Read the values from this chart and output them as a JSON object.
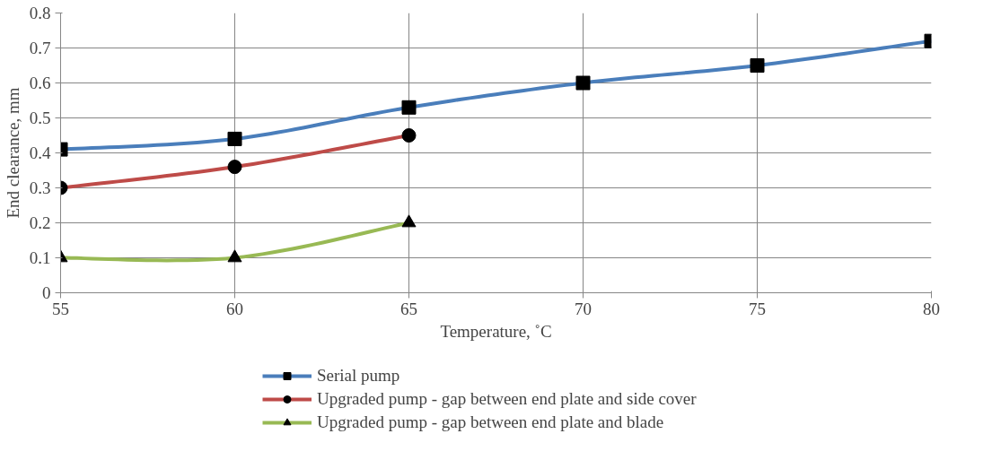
{
  "chart_data": {
    "type": "line",
    "xlabel": "Temperature, ˚C",
    "ylabel": "End clearance, mm",
    "x": [
      55,
      60,
      65,
      70,
      75,
      80
    ],
    "series": [
      {
        "name": "Serial pump",
        "color": "#4a7ebb",
        "marker": "square",
        "values": [
          0.41,
          0.44,
          0.53,
          0.6,
          0.65,
          0.72
        ]
      },
      {
        "name": "Upgraded pump - gap between end plate and side cover",
        "color": "#be4b48",
        "marker": "circle",
        "values": [
          0.3,
          0.36,
          0.45,
          null,
          null,
          null
        ]
      },
      {
        "name": "Upgraded pump - gap between end plate and blade",
        "color": "#98b954",
        "marker": "triangle",
        "values": [
          0.1,
          0.1,
          0.2,
          null,
          null,
          null
        ]
      }
    ],
    "xlim": [
      55,
      80
    ],
    "xticks": [
      55,
      60,
      65,
      70,
      75,
      80
    ],
    "ylim": [
      0,
      0.8
    ],
    "yticks": [
      0,
      0.1,
      0.2,
      0.3,
      0.4,
      0.5,
      0.6,
      0.7,
      0.8
    ],
    "grid": true,
    "legend": "bottom"
  }
}
